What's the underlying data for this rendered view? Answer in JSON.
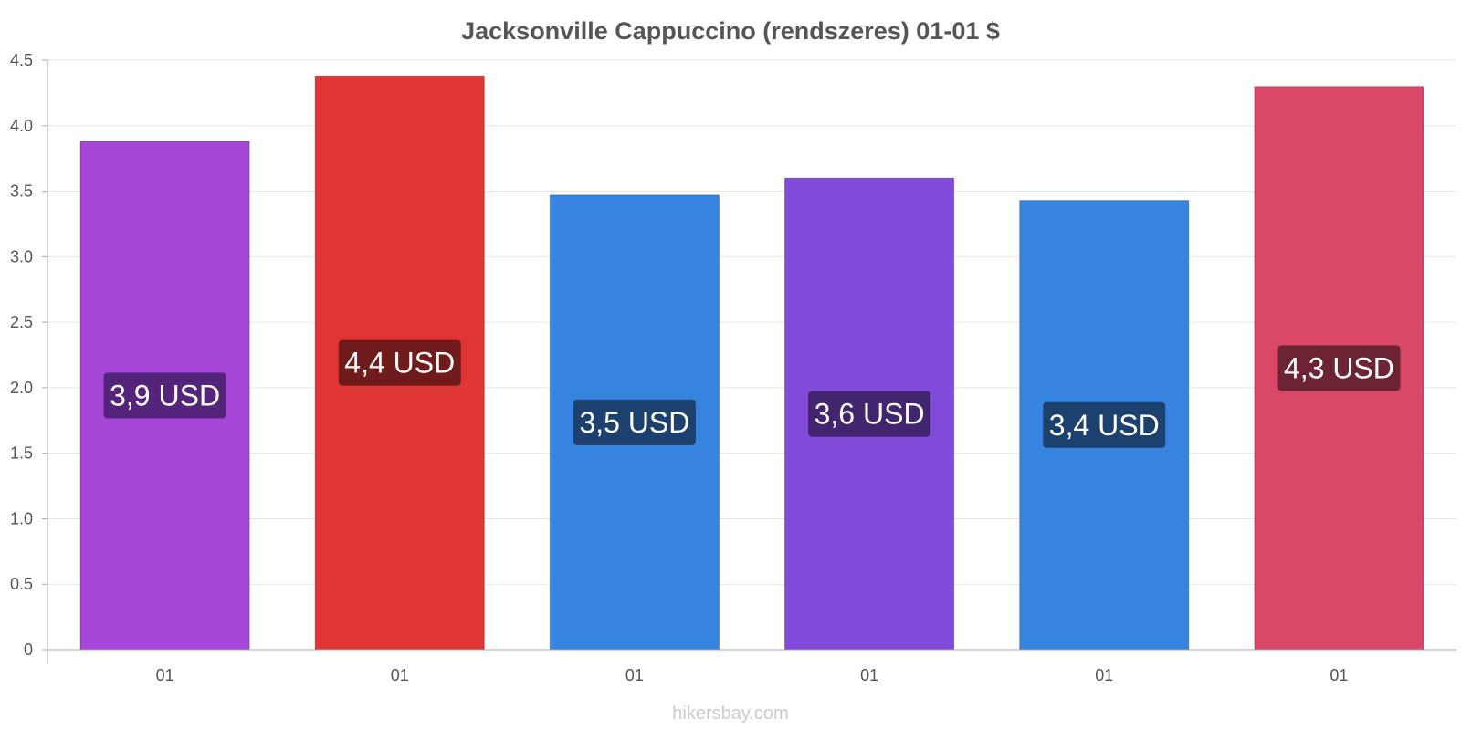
{
  "chart_data": {
    "type": "bar",
    "title": "Jacksonville Cappuccino (rendszeres) 01-01 $",
    "categories": [
      "01",
      "01",
      "01",
      "01",
      "01",
      "01"
    ],
    "values": [
      3.88,
      4.38,
      3.47,
      3.6,
      3.43,
      4.3
    ],
    "data_labels": [
      "3,9 USD",
      "4,4 USD",
      "3,5 USD",
      "3,6 USD",
      "3,4 USD",
      "4,3 USD"
    ],
    "colors": [
      "#a647d9",
      "#e03535",
      "#3783e0",
      "#824ad9",
      "#3783e0",
      "#d94868"
    ],
    "label_bg_colors": [
      "#53247a",
      "#701b1b",
      "#1c416e",
      "#41256e",
      "#1c416e",
      "#6c2434"
    ],
    "ylim": [
      0,
      4.5
    ],
    "yticks": [
      "0",
      "0.5",
      "1.0",
      "1.5",
      "2.0",
      "2.5",
      "3.0",
      "3.5",
      "4.0",
      "4.5"
    ],
    "grid": true,
    "legend": "none"
  },
  "watermark": "hikersbay.com"
}
